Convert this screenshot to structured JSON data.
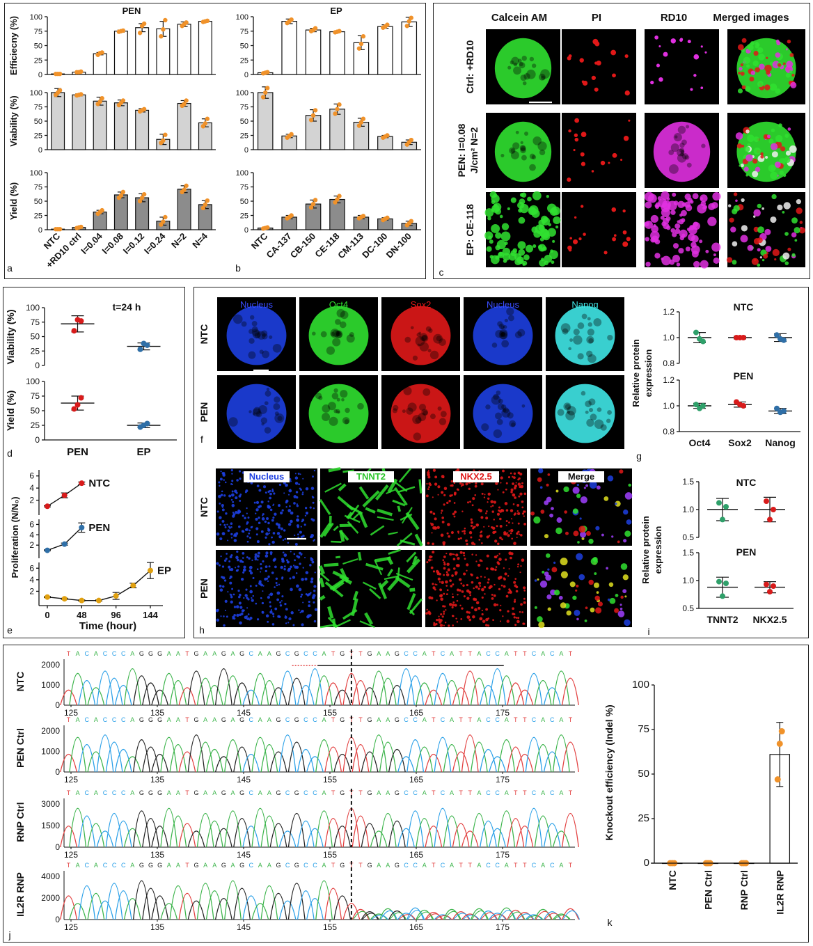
{
  "figure": {
    "panel_letters": [
      "a",
      "b",
      "c",
      "d",
      "e",
      "f",
      "g",
      "h",
      "i",
      "j",
      "k"
    ],
    "colors": {
      "orange": "#f0922a",
      "bar_white": "#ffffff",
      "bar_light": "#d3d3d3",
      "bar_dark": "#8c8c8c",
      "red": "#d81b1b",
      "blue": "#2f6fa7",
      "green": "#28a746",
      "teal": "#2fa06a",
      "gold": "#e0a010",
      "nucleus_blue": "#1d3fe0",
      "calcein_green": "#30e030",
      "pi_red": "#e01818",
      "rd10_magenta": "#e030e0",
      "nanog_cyan": "#3fe6e6",
      "seq_A": "#3cb44b",
      "seq_C": "#2aa0e8",
      "seq_G": "#222222",
      "seq_T": "#e24040"
    }
  },
  "panel_a": {
    "title": "PEN",
    "rows": [
      "Efficiecny (%)",
      "Viability (%)",
      "Yield (%)"
    ],
    "x_labels": [
      "NTC",
      "+RD10 ctrl",
      "I=0.04",
      "I=0.08",
      "I=0.12",
      "I=0.24",
      "N=2",
      "N=4"
    ]
  },
  "panel_b": {
    "title": "EP",
    "x_labels": [
      "NTC",
      "CA-137",
      "CB-150",
      "CE-118",
      "CM-113",
      "DC-100",
      "DN-100"
    ]
  },
  "panel_c": {
    "columns": [
      "Calcein AM",
      "PI",
      "RD10",
      "Merged images"
    ],
    "rows": [
      "Ctrl: +RD10",
      "PEN: I=0.08",
      "J/cm² N=2",
      "EP: CE-118"
    ]
  },
  "panel_d": {
    "annotation": "t=24 h",
    "rows": [
      "Viability (%)",
      "Yield (%)"
    ],
    "groups": [
      "PEN",
      "EP"
    ]
  },
  "panel_e": {
    "ylabel": "Proliferation (N/N₀)",
    "xlabel": "Time (hour)",
    "series_labels": [
      "NTC",
      "PEN",
      "EP"
    ],
    "x_ticks": [
      "0",
      "48",
      "96",
      "144"
    ]
  },
  "panel_f": {
    "columns": [
      "Nucleus",
      "Oct4",
      "Sox2",
      "Nucleus",
      "Nanog"
    ],
    "rows": [
      "NTC",
      "PEN"
    ]
  },
  "panel_g": {
    "ylabel": "Relative protein expression",
    "sub_titles": [
      "NTC",
      "PEN"
    ],
    "x_labels": [
      "Oct4",
      "Sox2",
      "Nanog"
    ]
  },
  "panel_h": {
    "columns": [
      "Nucleus",
      "TNNT2",
      "NKX2.5",
      "Merge"
    ],
    "rows": [
      "NTC",
      "PEN"
    ]
  },
  "panel_i": {
    "ylabel": "Relative protein expression",
    "sub_titles": [
      "NTC",
      "PEN"
    ],
    "x_labels": [
      "TNNT2",
      "NKX2.5"
    ]
  },
  "panel_j": {
    "sequence": "TACACCCAGGGAATGAAGAGCAAGCGCCATGTTGAAGCCATCATTACCATTCACAT",
    "x_ticks": [
      "125",
      "135",
      "145",
      "155",
      "165",
      "175"
    ],
    "tracks": [
      {
        "label": "NTC",
        "y_ticks": [
          "2000",
          "1000",
          "0"
        ]
      },
      {
        "label": "PEN Ctrl",
        "y_ticks": [
          "2000",
          "1000",
          "0"
        ]
      },
      {
        "label": "RNP Ctrl",
        "y_ticks": [
          "3000",
          "1500",
          "0"
        ]
      },
      {
        "label": "IL2R RNP",
        "y_ticks": [
          "4000",
          "2000",
          "0"
        ]
      }
    ]
  },
  "panel_k": {
    "ylabel": "Knockout efficiency (Indel %)",
    "x_labels": [
      "NTC",
      "PEN Ctrl",
      "RNP Ctrl",
      "IL2R RNP"
    ]
  },
  "chart_data": [
    {
      "id": "a-efficiency",
      "type": "bar",
      "title": "PEN",
      "ylabel": "Efficiecny (%)",
      "categories": [
        "NTC",
        "+RD10 ctrl",
        "I=0.04",
        "I=0.08",
        "I=0.12",
        "I=0.24",
        "N=2",
        "N=4"
      ],
      "values": [
        1,
        4,
        36,
        75,
        81,
        79,
        87,
        92
      ],
      "error": [
        1,
        1,
        2,
        2,
        7,
        13,
        4,
        1
      ],
      "points": [
        [
          1,
          1,
          1
        ],
        [
          4,
          4,
          5
        ],
        [
          34,
          37,
          38
        ],
        [
          74,
          75,
          76
        ],
        [
          72,
          84,
          88
        ],
        [
          66,
          78,
          94
        ],
        [
          84,
          87,
          90
        ],
        [
          91,
          92,
          93
        ]
      ],
      "ylim": [
        0,
        100
      ],
      "yticks": [
        0,
        25,
        50,
        75,
        100
      ]
    },
    {
      "id": "a-viability",
      "type": "bar",
      "ylabel": "Viability (%)",
      "categories": [
        "NTC",
        "+RD10 ctrl",
        "I=0.04",
        "I=0.08",
        "I=0.12",
        "I=0.24",
        "N=2",
        "N=4"
      ],
      "values": [
        100,
        96,
        85,
        82,
        69,
        18,
        81,
        47
      ],
      "error": [
        7,
        2,
        7,
        5,
        3,
        9,
        5,
        7
      ],
      "points": [
        [
          96,
          100,
          104
        ],
        [
          95,
          96,
          97
        ],
        [
          80,
          84,
          90
        ],
        [
          78,
          82,
          86
        ],
        [
          67,
          69,
          71
        ],
        [
          12,
          16,
          26
        ],
        [
          77,
          80,
          86
        ],
        [
          41,
          46,
          54
        ]
      ],
      "ylim": [
        0,
        100
      ],
      "yticks": [
        0,
        25,
        50,
        75,
        100
      ]
    },
    {
      "id": "a-yield",
      "type": "bar",
      "ylabel": "Yield (%)",
      "categories": [
        "NTC",
        "+RD10 ctrl",
        "I=0.04",
        "I=0.08",
        "I=0.12",
        "I=0.24",
        "N=2",
        "N=4"
      ],
      "values": [
        1,
        4,
        31,
        61,
        56,
        15,
        71,
        44
      ],
      "error": [
        1,
        1,
        3,
        5,
        7,
        7,
        6,
        7
      ],
      "points": [
        [
          1,
          1,
          1
        ],
        [
          3,
          4,
          5
        ],
        [
          28,
          31,
          34
        ],
        [
          56,
          60,
          66
        ],
        [
          50,
          56,
          62
        ],
        [
          9,
          14,
          22
        ],
        [
          66,
          70,
          77
        ],
        [
          38,
          44,
          51
        ]
      ],
      "ylim": [
        0,
        100
      ],
      "yticks": [
        0,
        25,
        50,
        75,
        100
      ]
    },
    {
      "id": "b-efficiency",
      "type": "bar",
      "title": "EP",
      "ylabel": "Efficiecny (%)",
      "categories": [
        "NTC",
        "CA-137",
        "CB-150",
        "CE-118",
        "CM-113",
        "DC-100",
        "DN-100"
      ],
      "values": [
        3,
        92,
        77,
        74,
        55,
        83,
        91
      ],
      "error": [
        1,
        4,
        3,
        1,
        12,
        3,
        8
      ],
      "points": [
        [
          2,
          3,
          4
        ],
        [
          89,
          92,
          95
        ],
        [
          75,
          77,
          80
        ],
        [
          73,
          74,
          75
        ],
        [
          45,
          53,
          66
        ],
        [
          81,
          83,
          86
        ],
        [
          84,
          92,
          98
        ]
      ],
      "ylim": [
        0,
        100
      ],
      "yticks": [
        0,
        25,
        50,
        75,
        100
      ]
    },
    {
      "id": "b-viability",
      "type": "bar",
      "ylabel": "Viability (%)",
      "categories": [
        "NTC",
        "CA-137",
        "CB-150",
        "CE-118",
        "CM-113",
        "DC-100",
        "DN-100"
      ],
      "values": [
        100,
        24,
        60,
        71,
        48,
        23,
        13
      ],
      "error": [
        10,
        3,
        10,
        9,
        7,
        2,
        4
      ],
      "points": [
        [
          92,
          100,
          108
        ],
        [
          21,
          24,
          27
        ],
        [
          52,
          60,
          69
        ],
        [
          63,
          71,
          79
        ],
        [
          42,
          48,
          54
        ],
        [
          21,
          23,
          25
        ],
        [
          9,
          13,
          17
        ]
      ],
      "ylim": [
        0,
        100
      ],
      "yticks": [
        0,
        25,
        50,
        75,
        100
      ]
    },
    {
      "id": "b-yield",
      "type": "bar",
      "ylabel": "Yield (%)",
      "categories": [
        "NTC",
        "CA-137",
        "CB-150",
        "CE-118",
        "CM-113",
        "DC-100",
        "DN-100"
      ],
      "values": [
        3,
        22,
        45,
        53,
        22,
        19,
        11
      ],
      "error": [
        1,
        3,
        7,
        6,
        3,
        2,
        4
      ],
      "points": [
        [
          2,
          3,
          4
        ],
        [
          20,
          22,
          25
        ],
        [
          39,
          45,
          52
        ],
        [
          48,
          53,
          59
        ],
        [
          20,
          22,
          24
        ],
        [
          17,
          19,
          21
        ],
        [
          8,
          11,
          15
        ]
      ],
      "ylim": [
        0,
        100
      ],
      "yticks": [
        0,
        25,
        50,
        75,
        100
      ]
    },
    {
      "id": "d-viability",
      "type": "scatter",
      "title": "t=24 h",
      "ylabel": "Viability (%)",
      "categories": [
        "PEN",
        "EP"
      ],
      "mean": [
        72,
        33
      ],
      "error": [
        14,
        6
      ],
      "points": [
        [
          60,
          79,
          77
        ],
        [
          28,
          38,
          35
        ]
      ],
      "ylim": [
        0,
        100
      ],
      "yticks": [
        0,
        25,
        50,
        75,
        100
      ]
    },
    {
      "id": "d-yield",
      "type": "scatter",
      "ylabel": "Yield (%)",
      "categories": [
        "PEN",
        "EP"
      ],
      "mean": [
        63,
        25
      ],
      "error": [
        12,
        4
      ],
      "points": [
        [
          53,
          60,
          72
        ],
        [
          22,
          25,
          28
        ]
      ],
      "ylim": [
        0,
        100
      ],
      "yticks": [
        0,
        25,
        50,
        75,
        100
      ]
    },
    {
      "id": "e-proliferation",
      "type": "line",
      "ylabel": "Proliferation (N/N₀)",
      "xlabel": "Time (hour)",
      "xlim": [
        0,
        144
      ],
      "xticks": [
        0,
        48,
        96,
        144
      ],
      "series": [
        {
          "name": "NTC",
          "x": [
            0,
            24,
            48
          ],
          "y": [
            1.0,
            2.8,
            4.8
          ],
          "error": [
            0.1,
            0.4,
            0.2
          ]
        },
        {
          "name": "PEN",
          "x": [
            0,
            24,
            48
          ],
          "y": [
            1.0,
            2.2,
            5.4
          ],
          "error": [
            0.1,
            0.2,
            0.9
          ]
        },
        {
          "name": "EP",
          "x": [
            0,
            24,
            48,
            72,
            96,
            120,
            144
          ],
          "y": [
            1.0,
            0.7,
            0.4,
            0.4,
            1.2,
            3.0,
            5.6
          ],
          "error": [
            0.1,
            0.1,
            0.1,
            0.1,
            0.6,
            0.4,
            1.4
          ]
        }
      ],
      "ylim": [
        0,
        7
      ],
      "yticks": [
        2,
        4,
        6
      ]
    },
    {
      "id": "g-NTC",
      "type": "scatter",
      "title": "NTC",
      "ylabel": "Relative protein expression",
      "categories": [
        "Oct4",
        "Sox2",
        "Nanog"
      ],
      "mean": [
        1.0,
        1.0,
        1.0
      ],
      "error": [
        0.04,
        0.01,
        0.03
      ],
      "points": [
        [
          1.04,
          0.99,
          0.97
        ],
        [
          1.0,
          1.0,
          1.0
        ],
        [
          1.02,
          0.99,
          0.98
        ]
      ],
      "ylim": [
        0.8,
        1.2
      ],
      "yticks": [
        0.8,
        1.0,
        1.2
      ]
    },
    {
      "id": "g-PEN",
      "type": "scatter",
      "title": "PEN",
      "ylabel": "Relative protein expression",
      "categories": [
        "Oct4",
        "Sox2",
        "Nanog"
      ],
      "mean": [
        1.0,
        1.01,
        0.96
      ],
      "error": [
        0.02,
        0.02,
        0.02
      ],
      "points": [
        [
          1.01,
          0.98,
          1.0
        ],
        [
          1.03,
          1.01,
          1.0
        ],
        [
          0.98,
          0.95,
          0.96
        ]
      ],
      "ylim": [
        0.8,
        1.2
      ],
      "yticks": [
        0.8,
        1.0,
        1.2
      ]
    },
    {
      "id": "i-NTC",
      "type": "scatter",
      "title": "NTC",
      "ylabel": "Relative protein expression",
      "categories": [
        "TNNT2",
        "NKX2.5"
      ],
      "mean": [
        1.0,
        1.0
      ],
      "error": [
        0.2,
        0.22
      ],
      "points": [
        [
          1.12,
          0.82,
          1.05
        ],
        [
          1.15,
          0.82,
          1.0
        ]
      ],
      "ylim": [
        0.5,
        1.5
      ],
      "yticks": [
        0.5,
        1.0,
        1.5
      ]
    },
    {
      "id": "i-PEN",
      "type": "scatter",
      "title": "PEN",
      "ylabel": "Relative protein expression",
      "categories": [
        "TNNT2",
        "NKX2.5"
      ],
      "mean": [
        0.88,
        0.88
      ],
      "error": [
        0.18,
        0.1
      ],
      "points": [
        [
          0.98,
          0.72,
          0.95
        ],
        [
          0.93,
          0.8,
          0.9
        ]
      ],
      "ylim": [
        0.5,
        1.5
      ],
      "yticks": [
        0.5,
        1.0,
        1.5
      ]
    },
    {
      "id": "k-knockout",
      "type": "bar",
      "ylabel": "Knockout efficiency (Indel %)",
      "categories": [
        "NTC",
        "PEN Ctrl",
        "RNP Ctrl",
        "IL2R RNP"
      ],
      "values": [
        0,
        0,
        0,
        61
      ],
      "error": [
        0.5,
        0.5,
        0.5,
        18
      ],
      "points": [
        [
          0,
          0,
          0
        ],
        [
          0,
          0,
          0
        ],
        [
          0,
          0,
          0
        ],
        [
          47,
          67,
          74
        ]
      ],
      "ylim": [
        0,
        100
      ],
      "yticks": [
        0,
        25,
        50,
        75,
        100
      ]
    }
  ]
}
